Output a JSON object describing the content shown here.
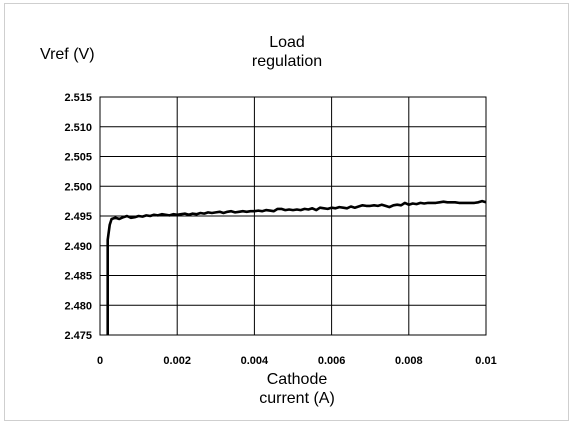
{
  "chart_data": {
    "type": "line",
    "title": "Load\nregulation",
    "title_lines": [
      "Load",
      "regulation"
    ],
    "ylabel": "Vref (V)",
    "xlabel_lines": [
      "Cathode",
      "current (A)"
    ],
    "xlim": [
      0,
      0.01
    ],
    "ylim": [
      2.475,
      2.515
    ],
    "x_ticks": [
      "0",
      "0.002",
      "0.004",
      "0.006",
      "0.008",
      "0.01"
    ],
    "y_ticks": [
      "2.515",
      "2.510",
      "2.505",
      "2.500",
      "2.495",
      "2.490",
      "2.485",
      "2.480",
      "2.475"
    ],
    "grid": true,
    "legend": "none",
    "series": [
      {
        "color": "#000000",
        "x": [
          0.0002,
          0.0002,
          0.00025,
          0.0003,
          0.0004,
          0.0005,
          0.0006,
          0.0007,
          0.0008,
          0.0009,
          0.001,
          0.0011,
          0.0012,
          0.0013,
          0.0014,
          0.0015,
          0.0016,
          0.0017,
          0.0018,
          0.0019,
          0.002,
          0.0021,
          0.0022,
          0.0023,
          0.0024,
          0.0025,
          0.0026,
          0.0027,
          0.0028,
          0.0029,
          0.003,
          0.0031,
          0.0032,
          0.0033,
          0.0034,
          0.0035,
          0.0036,
          0.0037,
          0.0038,
          0.0039,
          0.004,
          0.0041,
          0.0042,
          0.0043,
          0.0044,
          0.0045,
          0.0046,
          0.0047,
          0.0048,
          0.0049,
          0.005,
          0.0051,
          0.0052,
          0.0053,
          0.0054,
          0.0055,
          0.0056,
          0.0057,
          0.0058,
          0.0059,
          0.006,
          0.0061,
          0.0062,
          0.0063,
          0.0064,
          0.0065,
          0.0066,
          0.0067,
          0.0068,
          0.0069,
          0.007,
          0.0071,
          0.0072,
          0.0073,
          0.0074,
          0.0075,
          0.0076,
          0.0077,
          0.0078,
          0.0079,
          0.008,
          0.0081,
          0.0082,
          0.0083,
          0.0084,
          0.0085,
          0.0086,
          0.0087,
          0.0088,
          0.0089,
          0.009,
          0.0091,
          0.0092,
          0.0093,
          0.0094,
          0.0095,
          0.0096,
          0.0097,
          0.0098,
          0.0099,
          0.01
        ],
        "y": [
          2.475,
          2.491,
          2.4935,
          2.4945,
          2.4947,
          2.4945,
          2.4948,
          2.495,
          2.4947,
          2.4948,
          2.495,
          2.4949,
          2.4951,
          2.495,
          2.4952,
          2.4951,
          2.4953,
          2.4952,
          2.4951,
          2.4953,
          2.4952,
          2.4953,
          2.4954,
          2.4952,
          2.4954,
          2.4953,
          2.4955,
          2.4954,
          2.4956,
          2.4955,
          2.4956,
          2.4957,
          2.4955,
          2.4957,
          2.4958,
          2.4956,
          2.4957,
          2.4958,
          2.4957,
          2.4958,
          2.4958,
          2.4959,
          2.4958,
          2.496,
          2.4959,
          2.4958,
          2.4962,
          2.4962,
          2.496,
          2.4961,
          2.496,
          2.4961,
          2.496,
          2.4962,
          2.4961,
          2.4963,
          2.496,
          2.4964,
          2.4963,
          2.4962,
          2.4964,
          2.4963,
          2.4965,
          2.4964,
          2.4963,
          2.4966,
          2.4964,
          2.4966,
          2.4968,
          2.4967,
          2.4967,
          2.4968,
          2.4967,
          2.4969,
          2.4967,
          2.4965,
          2.4968,
          2.4969,
          2.4968,
          2.4972,
          2.4969,
          2.4971,
          2.497,
          2.4972,
          2.4971,
          2.4972,
          2.4972,
          2.4972,
          2.4973,
          2.4974,
          2.4973,
          2.4973,
          2.4973,
          2.4972,
          2.4972,
          2.4972,
          2.4972,
          2.4972,
          2.4973,
          2.4975,
          2.4973
        ]
      }
    ]
  }
}
